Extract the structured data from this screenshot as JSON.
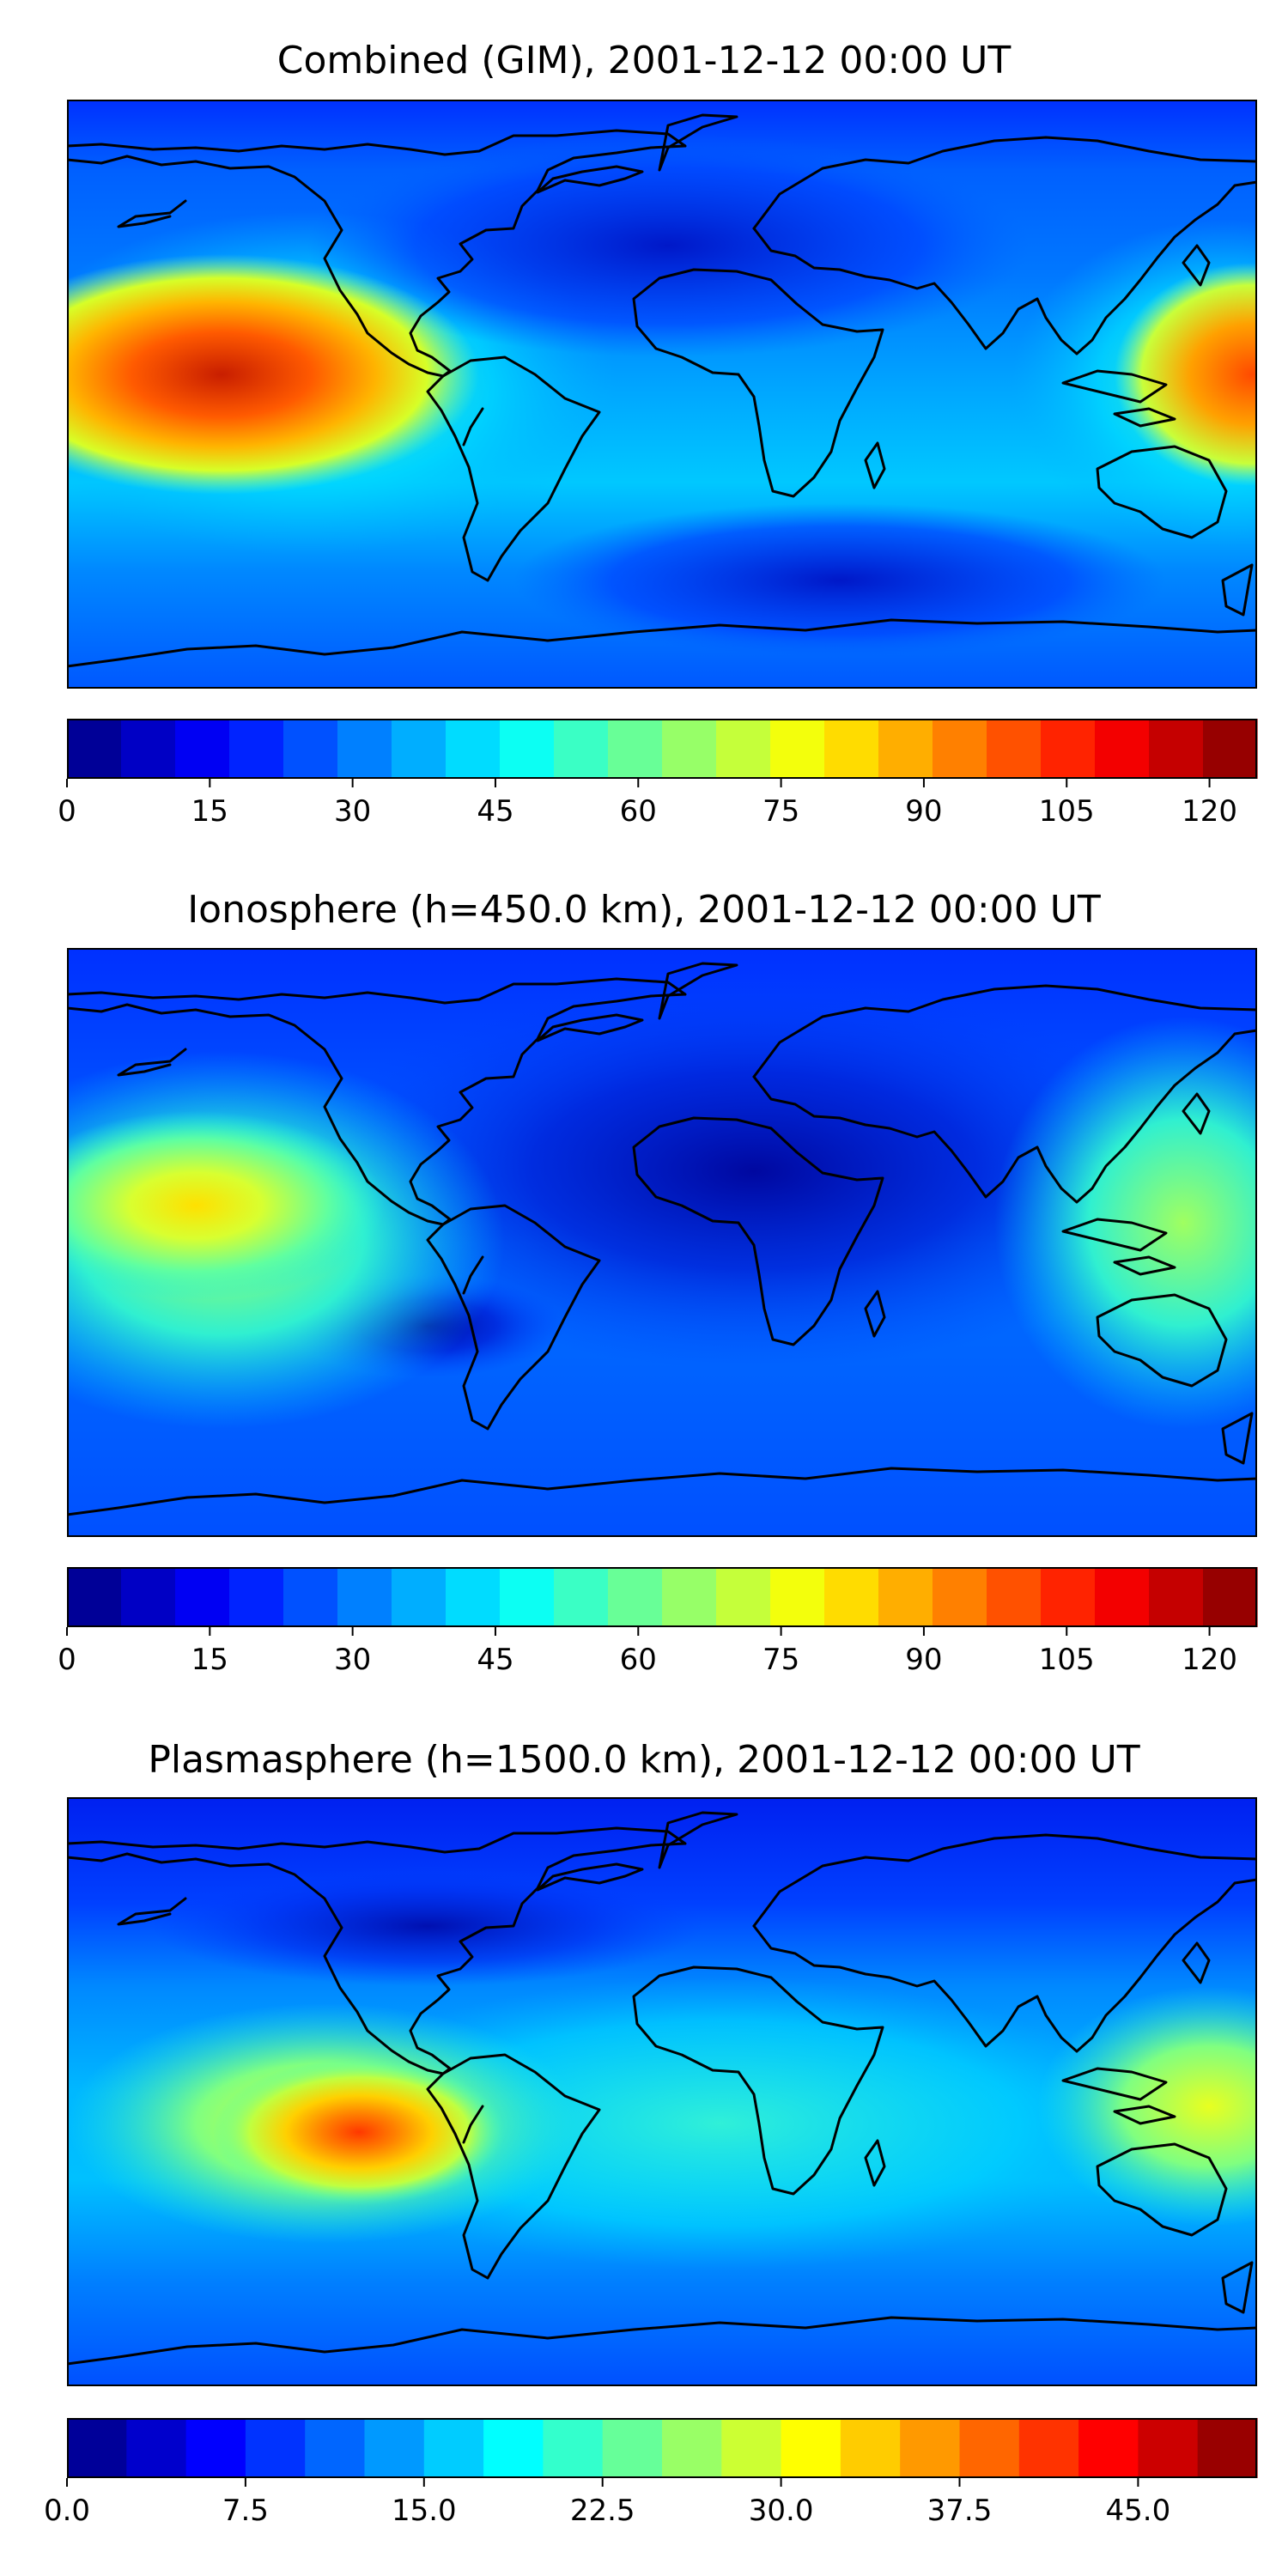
{
  "panels": [
    {
      "title": "Combined (GIM), 2001-12-12 00:00 UT",
      "colorbar": {
        "min": 0,
        "max": 125,
        "levels": 22,
        "ticks": [
          0,
          15,
          30,
          45,
          60,
          75,
          90,
          105,
          120
        ],
        "tick_labels": [
          "0",
          "15",
          "30",
          "45",
          "60",
          "75",
          "90",
          "105",
          "120"
        ]
      }
    },
    {
      "title": "Ionosphere  (h=450.0 km), 2001-12-12 00:00 UT",
      "colorbar": {
        "min": 0,
        "max": 125,
        "levels": 22,
        "ticks": [
          0,
          15,
          30,
          45,
          60,
          75,
          90,
          105,
          120
        ],
        "tick_labels": [
          "0",
          "15",
          "30",
          "45",
          "60",
          "75",
          "90",
          "105",
          "120"
        ]
      }
    },
    {
      "title": "Plasmasphere (h=1500.0 km), 2001-12-12 00:00 UT",
      "colorbar": {
        "min": 0,
        "max": 50,
        "levels": 20,
        "ticks": [
          0,
          7.5,
          15,
          22.5,
          30,
          37.5,
          45
        ],
        "tick_labels": [
          "0.0",
          "7.5",
          "15.0",
          "22.5",
          "30.0",
          "37.5",
          "45.0"
        ]
      }
    }
  ],
  "colormap": "jet",
  "coastline_color": "#000000"
}
